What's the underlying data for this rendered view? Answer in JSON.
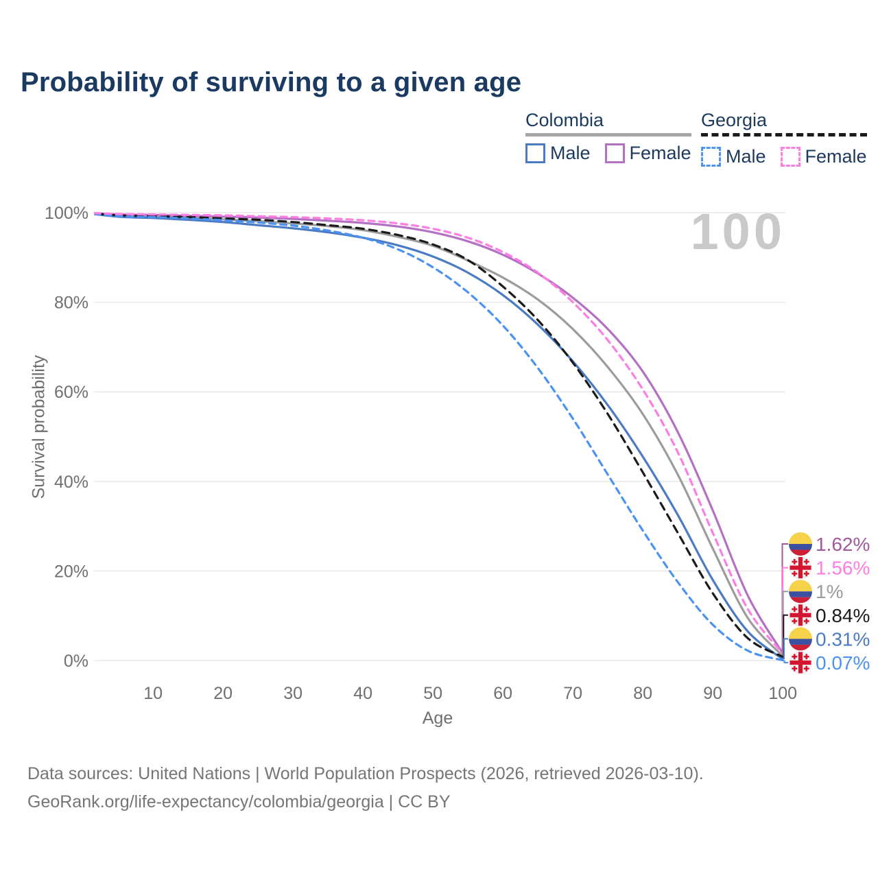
{
  "title": "Probability of surviving to a given age",
  "watermark_age": "100",
  "legend": {
    "groups": [
      {
        "label": "Colombia",
        "line_style": "solid",
        "items": [
          {
            "label": "Male",
            "color": "#4b7bc5",
            "dashed": false
          },
          {
            "label": "Female",
            "color": "#b470c2",
            "dashed": false
          }
        ]
      },
      {
        "label": "Georgia",
        "line_style": "dashed",
        "items": [
          {
            "label": "Male",
            "color": "#4c92f2",
            "dashed": true
          },
          {
            "label": "Female",
            "color": "#fc7ee2",
            "dashed": true
          }
        ]
      }
    ]
  },
  "axes": {
    "x_label": "Age",
    "y_label": "Survival probability",
    "x_ticks": [
      {
        "v": 10,
        "label": "10"
      },
      {
        "v": 20,
        "label": "20"
      },
      {
        "v": 30,
        "label": "30"
      },
      {
        "v": 40,
        "label": "40"
      },
      {
        "v": 50,
        "label": "50"
      },
      {
        "v": 60,
        "label": "60"
      },
      {
        "v": 70,
        "label": "70"
      },
      {
        "v": 80,
        "label": "80"
      },
      {
        "v": 90,
        "label": "90"
      },
      {
        "v": 100,
        "label": "100"
      }
    ],
    "y_ticks": [
      {
        "v": 0,
        "label": "0%"
      },
      {
        "v": 20,
        "label": "20%"
      },
      {
        "v": 40,
        "label": "40%"
      },
      {
        "v": 60,
        "label": "60%"
      },
      {
        "v": 80,
        "label": "80%"
      },
      {
        "v": 100,
        "label": "100%"
      }
    ]
  },
  "colors": {
    "grid": "#e8e8e8",
    "tick_text": "#6f6f6f",
    "title_text": "#1b3a61",
    "flag_colombia_yellow": "#f6d24b",
    "flag_colombia_blue": "#3b50a1",
    "flag_colombia_red": "#cd1f36",
    "flag_georgia_bg": "#f0f0f0",
    "flag_georgia_red": "#d4152f"
  },
  "chart_data": {
    "type": "line",
    "x_name": "age",
    "xlim": [
      0,
      100
    ],
    "ylim": [
      0,
      100
    ],
    "grid": "horizontal",
    "ages": [
      0,
      5,
      10,
      15,
      20,
      25,
      30,
      35,
      40,
      45,
      50,
      55,
      60,
      65,
      70,
      75,
      80,
      85,
      90,
      95,
      100
    ],
    "series": [
      {
        "name": "Colombia Female",
        "country": "Colombia",
        "sex": "Female",
        "color": "#b470c2",
        "label_color": "#a2589b",
        "dash": null,
        "flag": "colombia",
        "end_label": "1.62%",
        "end_value": 1.62,
        "values": [
          100,
          99.6,
          99.5,
          99.3,
          99.1,
          98.9,
          98.6,
          98.2,
          97.7,
          96.9,
          95.6,
          93.6,
          90.6,
          86.4,
          81.0,
          74.0,
          64.5,
          51.0,
          33.5,
          14.5,
          1.62
        ]
      },
      {
        "name": "Georgia Female",
        "country": "Georgia",
        "sex": "Female",
        "color": "#fc7ee2",
        "label_color": "#fc7ee2",
        "dash": [
          9,
          7
        ],
        "flag": "georgia",
        "end_label": "1.56%",
        "end_value": 1.56,
        "values": [
          100,
          99.7,
          99.6,
          99.5,
          99.4,
          99.2,
          99.0,
          98.7,
          98.3,
          97.6,
          96.4,
          94.4,
          91.2,
          86.6,
          80.0,
          71.5,
          60.5,
          46.5,
          28.5,
          11.5,
          1.56
        ]
      },
      {
        "name": "Colombia",
        "country": "Colombia",
        "sex": "All",
        "color": "#9c9c9c",
        "label_color": "#9c9c9c",
        "dash": null,
        "flag": "colombia",
        "end_label": "1%",
        "end_value": 1.0,
        "values": [
          100,
          99.3,
          99.1,
          98.8,
          98.5,
          98.1,
          97.6,
          97.0,
          96.1,
          94.6,
          92.6,
          89.3,
          85.5,
          80.6,
          74.0,
          65.5,
          55.0,
          41.5,
          25.0,
          9.5,
          1.0
        ]
      },
      {
        "name": "Georgia",
        "country": "Georgia",
        "sex": "All",
        "color": "#1b1b1b",
        "label_color": "#1b1b1b",
        "dash": [
          11,
          8
        ],
        "flag": "georgia",
        "end_label": "0.84%",
        "end_value": 0.84,
        "values": [
          100,
          99.4,
          99.2,
          99.0,
          98.7,
          98.4,
          97.9,
          97.2,
          96.4,
          95.0,
          92.9,
          89.4,
          83.5,
          76.0,
          66.5,
          55.0,
          42.0,
          28.5,
          15.0,
          5.0,
          0.84
        ]
      },
      {
        "name": "Colombia Male",
        "country": "Colombia",
        "sex": "Male",
        "color": "#4b7bc5",
        "label_color": "#4b7bc5",
        "dash": null,
        "flag": "colombia",
        "end_label": "0.31%",
        "end_value": 0.31,
        "values": [
          100,
          99.1,
          98.8,
          98.4,
          97.9,
          97.2,
          96.5,
          95.6,
          94.4,
          92.7,
          90.2,
          86.6,
          81.6,
          75.0,
          66.8,
          57.0,
          45.5,
          32.5,
          18.0,
          6.5,
          0.31
        ]
      },
      {
        "name": "Georgia Male",
        "country": "Georgia",
        "sex": "Male",
        "color": "#4c92f2",
        "label_color": "#4c92f2",
        "dash": [
          9,
          7
        ],
        "flag": "georgia",
        "end_label": "0.07%",
        "end_value": 0.07,
        "values": [
          100,
          99.2,
          99.0,
          98.7,
          98.3,
          97.8,
          97.1,
          96.0,
          94.4,
          91.8,
          87.8,
          82.2,
          74.8,
          65.3,
          54.0,
          41.5,
          29.0,
          17.5,
          8.0,
          2.2,
          0.07
        ]
      }
    ]
  },
  "footer": {
    "line1": "Data sources: United Nations | World Population Prospects (2026, retrieved 2026-03-10).",
    "line2": "GeoRank.org/life-expectancy/colombia/georgia | CC BY"
  }
}
